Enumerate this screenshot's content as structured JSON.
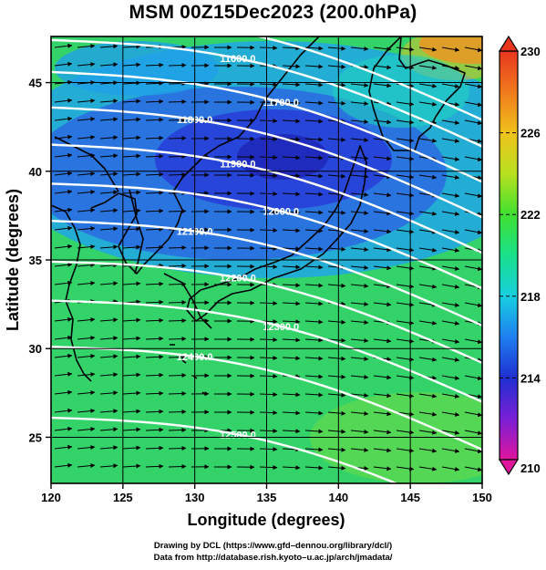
{
  "title": "MSM 00Z15Dec2023 (200.0hPa)",
  "chart_data": {
    "type": "heatmap",
    "title": "MSM 00Z15Dec2023 (200.0hPa)",
    "xlabel": "Longitude (degrees)",
    "ylabel": "Latitude  (degrees)",
    "xlim": [
      120,
      150
    ],
    "ylim": [
      22.4,
      47.6
    ],
    "x_ticks": [
      "120",
      "125",
      "130",
      "135",
      "140",
      "145",
      "150"
    ],
    "y_ticks": [
      "25",
      "30",
      "35",
      "40",
      "45"
    ],
    "grid": true,
    "colorbar": {
      "min": 210,
      "max": 230,
      "tick_labels": [
        "230",
        "226",
        "222",
        "218",
        "214",
        "210"
      ],
      "colors": [
        "#e0159e",
        "#7a1fd6",
        "#1f2fd0",
        "#1e7ff0",
        "#18cfe0",
        "#19e08a",
        "#40e030",
        "#b8e01f",
        "#f0c21c",
        "#f07a1c",
        "#e8361e"
      ]
    },
    "contours": [
      {
        "label": "11500.0",
        "lat_at_120": 48.9,
        "lat_at_150": 42.9
      },
      {
        "label": "11600.0",
        "lat_at_120": 47.4,
        "lat_at_150": 41.4
      },
      {
        "label": "11700.0",
        "lat_at_120": 45.6,
        "lat_at_150": 39.4
      },
      {
        "label": "11800.0",
        "lat_at_120": 43.6,
        "lat_at_150": 37.4
      },
      {
        "label": "11900.0",
        "lat_at_120": 41.5,
        "lat_at_150": 35.4
      },
      {
        "label": "12000.0",
        "lat_at_120": 39.3,
        "lat_at_150": 33.4
      },
      {
        "label": "12100.0",
        "lat_at_120": 37.2,
        "lat_at_150": 31.3
      },
      {
        "label": "12200.0",
        "lat_at_120": 34.9,
        "lat_at_150": 29.2
      },
      {
        "label": "12300.0",
        "lat_at_120": 32.7,
        "lat_at_150": 27.0
      },
      {
        "label": "12400.0",
        "lat_at_120": 30.1,
        "lat_at_150": 24.3
      },
      {
        "label": "12500.0",
        "lat_at_120": 26.1,
        "lat_at_150": 20.3
      }
    ]
  },
  "credits": {
    "line1": "Drawing by DCL (https://www.gfd–dennou.org/library/dcl/)",
    "line2": "Data from http://database.rish.kyoto–u.ac.jp/arch/jmadata/"
  }
}
